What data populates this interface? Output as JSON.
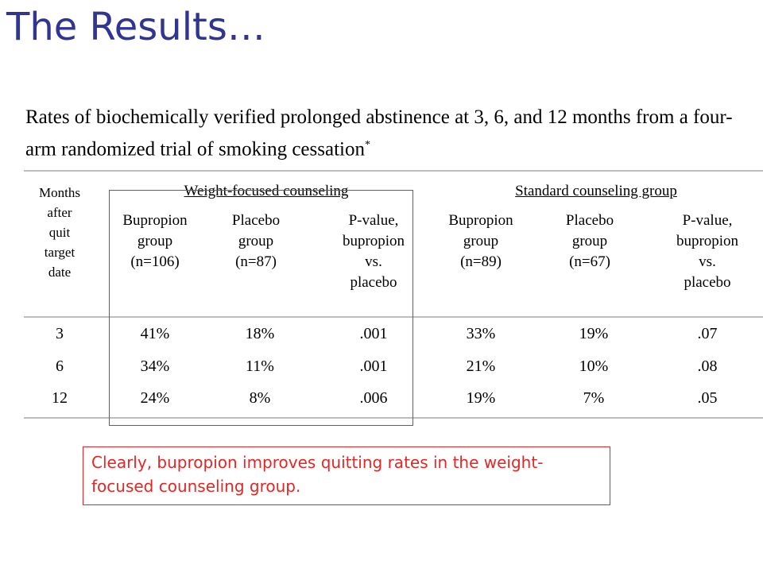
{
  "title": "The Results…",
  "caption": {
    "text": "Rates of biochemically verified prolonged abstinence at 3, 6, and 12 months from a four-arm randomized trial of smoking cessation",
    "footnote_mark": "*"
  },
  "table": {
    "row_header": [
      "Months",
      "after",
      "quit",
      "target",
      "date"
    ],
    "group_headers": [
      "Weight-focused counseling",
      "Standard counseling group"
    ],
    "columns": [
      {
        "lines": [
          "Bupropion",
          "group",
          "(n=106)"
        ]
      },
      {
        "lines": [
          "Placebo",
          "group",
          "(n=87)"
        ]
      },
      {
        "lines": [
          "P-value,",
          "bupropion",
          "vs.",
          "placebo"
        ]
      },
      {
        "lines": [
          "Bupropion",
          "group",
          "(n=89)"
        ]
      },
      {
        "lines": [
          "Placebo",
          "group",
          "(n=67)"
        ]
      },
      {
        "lines": [
          "P-value,",
          "bupropion",
          "vs.",
          "placebo"
        ]
      }
    ],
    "rows": [
      [
        "3",
        "41%",
        "18%",
        ".001",
        "33%",
        "19%",
        ".07"
      ],
      [
        "6",
        "34%",
        "11%",
        ".001",
        "21%",
        "10%",
        ".08"
      ],
      [
        "12",
        "24%",
        "8%",
        ".006",
        "19%",
        "7%",
        ".05"
      ]
    ]
  },
  "note": "Clearly, bupropion improves quitting rates in the weight-focused counseling group.",
  "colors": {
    "title": "#2f3590",
    "highlight": "#e32626",
    "rule": "#bdbdbd"
  }
}
